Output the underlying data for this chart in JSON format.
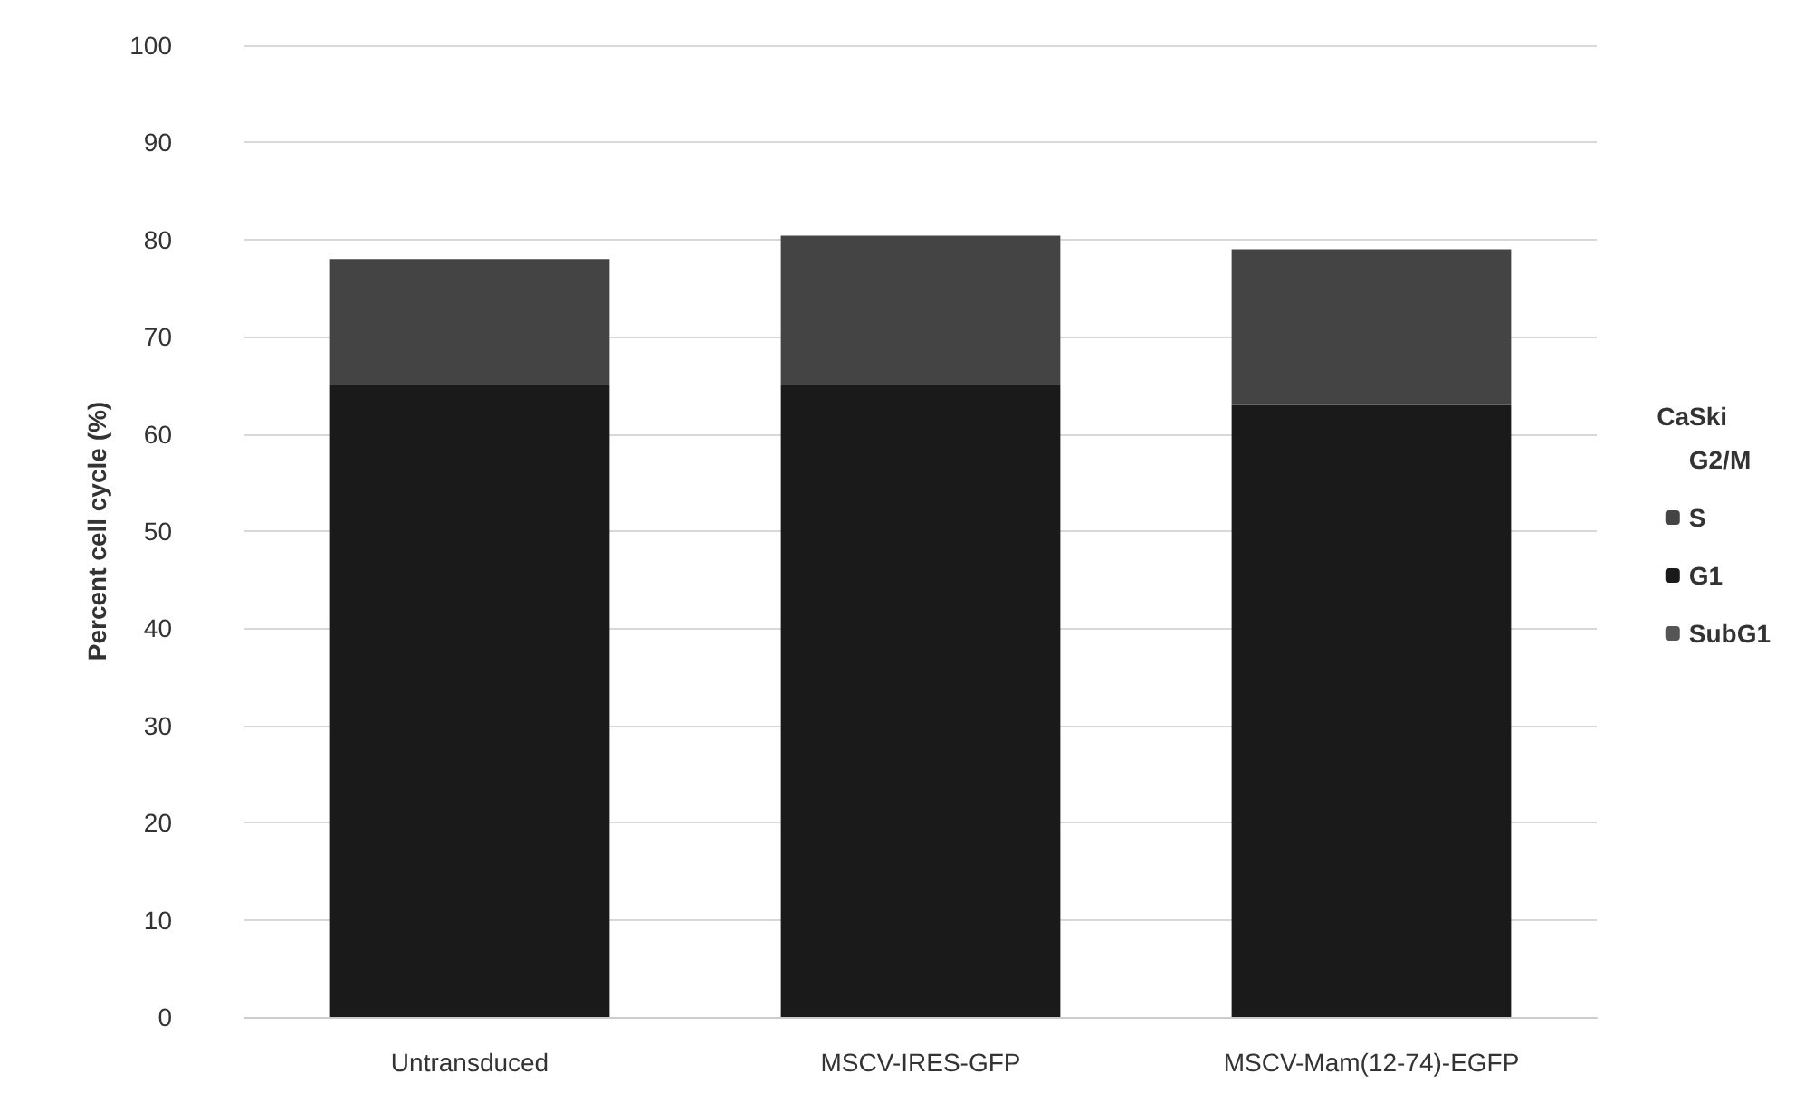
{
  "chart_data": {
    "type": "bar",
    "stacked": true,
    "ylabel": "Percent cell cycle (%)",
    "legend_title": "CaSki",
    "legend": "right",
    "grid": "y",
    "categories": [
      "Untransduced",
      "MSCV-IRES-GFP",
      "MSCV-Mam(12-74)-EGFP"
    ],
    "ylim": [
      0,
      100
    ],
    "yticks": [
      0,
      10,
      20,
      30,
      40,
      50,
      60,
      70,
      80,
      90,
      100
    ],
    "series": [
      {
        "name": "SubG1",
        "color": "#555555",
        "values": [
          null,
          null,
          null
        ]
      },
      {
        "name": "G1",
        "color": "#1a1a1a",
        "values": [
          65,
          65,
          63
        ]
      },
      {
        "name": "S",
        "color": "#444444",
        "values": [
          13,
          15.4,
          16
        ]
      },
      {
        "name": "G2/M",
        "values": [
          null,
          null,
          null
        ]
      }
    ]
  }
}
